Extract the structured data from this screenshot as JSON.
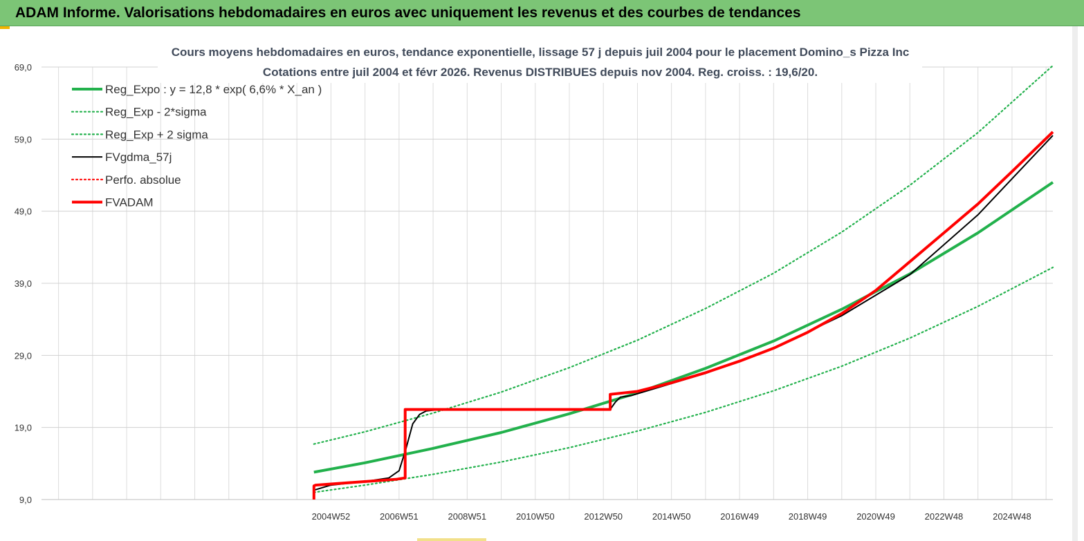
{
  "header": {
    "title": "ADAM Informe. Valorisations hebdomadaires en euros avec uniquement les revenus et des courbes de tendances"
  },
  "chart_data": {
    "type": "line",
    "title_line1": "Cours moyens hebdomadaires en euros, tendance exponentielle, lissage 57 j depuis juil 2004 pour le placement Domino_s Pizza Inc",
    "title_line2": "Cotations entre juil 2004 et févr 2026. Revenus DISTRIBUES depuis nov 2004. Reg. croiss. : 19,6/20.",
    "ylim": [
      9,
      69
    ],
    "y_ticks": [
      "69,0",
      "59,0",
      "49,0",
      "39,0",
      "29,0",
      "19,0",
      "9,0"
    ],
    "y_tick_values": [
      69,
      59,
      49,
      39,
      29,
      19,
      9
    ],
    "x_range": [
      1996.5,
      2026.2
    ],
    "x_ticks": [
      "2004W52",
      "2006W51",
      "2008W51",
      "2010W50",
      "2012W50",
      "2014W50",
      "2016W49",
      "2018W49",
      "2020W49",
      "2022W48",
      "2024W48"
    ],
    "x_tick_values": [
      2005.0,
      2007.0,
      2009.0,
      2011.0,
      2013.0,
      2015.0,
      2017.0,
      2019.0,
      2021.0,
      2023.0,
      2025.0
    ],
    "grid": true,
    "legend_position": "top-left",
    "series": [
      {
        "name": "Reg_Expo : y = 12,8 * exp( 6,6% *  X_an )",
        "color": "#22b14c",
        "style": "solid-thick",
        "x": [
          2004.5,
          2006.0,
          2008.0,
          2010.0,
          2012.0,
          2014.0,
          2016.0,
          2018.0,
          2020.0,
          2022.0,
          2024.0,
          2026.2
        ],
        "values": [
          12.8,
          14.1,
          16.1,
          18.3,
          20.9,
          23.8,
          27.2,
          31.0,
          35.4,
          40.3,
          46.0,
          53.0
        ]
      },
      {
        "name": "Reg_Exp - 2*sigma",
        "color": "#22b14c",
        "style": "dotted",
        "x": [
          2004.5,
          2006.0,
          2008.0,
          2010.0,
          2012.0,
          2014.0,
          2016.0,
          2018.0,
          2020.0,
          2022.0,
          2024.0,
          2026.2
        ],
        "values": [
          10.0,
          11.0,
          12.5,
          14.2,
          16.2,
          18.5,
          21.1,
          24.1,
          27.5,
          31.4,
          35.8,
          41.2
        ]
      },
      {
        "name": "Reg_Exp + 2 sigma",
        "color": "#22b14c",
        "style": "dotted",
        "x": [
          2004.5,
          2006.0,
          2008.0,
          2010.0,
          2012.0,
          2014.0,
          2016.0,
          2018.0,
          2020.0,
          2022.0,
          2024.0,
          2026.2
        ],
        "values": [
          16.7,
          18.4,
          21.0,
          23.9,
          27.3,
          31.1,
          35.5,
          40.4,
          46.1,
          52.6,
          59.9,
          69.2
        ]
      },
      {
        "name": "FVgdma_57j",
        "color": "#000000",
        "style": "solid",
        "x": [
          2004.5,
          2005.0,
          2006.0,
          2006.7,
          2007.0,
          2007.2,
          2007.4,
          2007.6,
          2007.8,
          2008.2,
          2013.2,
          2013.35,
          2013.5,
          2013.8,
          2016.0,
          2018.0,
          2020.0,
          2022.0,
          2024.0,
          2026.2
        ],
        "values": [
          10.3,
          11.0,
          11.5,
          12.0,
          13.0,
          16.0,
          19.5,
          20.8,
          21.3,
          21.5,
          21.5,
          22.5,
          23.2,
          23.4,
          26.5,
          30.0,
          34.5,
          40.2,
          48.5,
          59.5
        ]
      },
      {
        "name": "Perfo. absolue",
        "color": "#ff0000",
        "style": "dotted",
        "x": [],
        "values": []
      },
      {
        "name": "FVADAM",
        "color": "#ff0000",
        "style": "solid-thick",
        "x": [
          2004.5,
          2004.5,
          2004.55,
          2006.9,
          2007.18,
          2007.18,
          2013.2,
          2013.2,
          2014.0,
          2015.0,
          2016.0,
          2017.0,
          2018.0,
          2019.0,
          2020.0,
          2021.0,
          2022.0,
          2023.0,
          2024.0,
          2025.0,
          2026.2
        ],
        "values": [
          9.0,
          10.9,
          11.0,
          11.8,
          12.0,
          21.5,
          21.5,
          23.6,
          24.0,
          25.2,
          26.6,
          28.2,
          30.0,
          32.2,
          34.8,
          38.0,
          42.0,
          46.0,
          50.0,
          54.5,
          60.0
        ]
      }
    ]
  }
}
